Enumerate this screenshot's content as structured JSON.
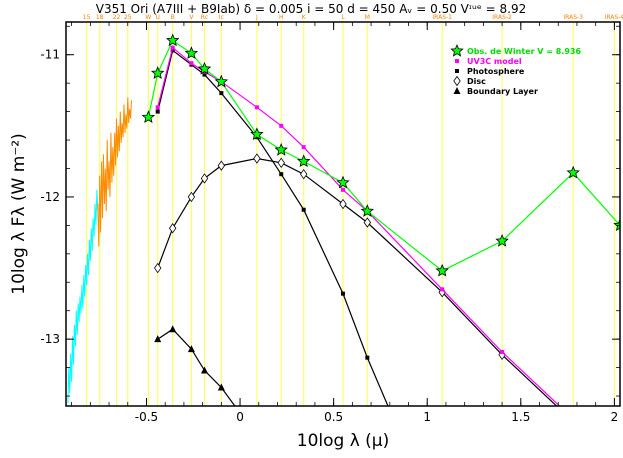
{
  "title": "V351 Ori (A7III + B9Iab) δ = 0.005 i = 50 d = 450 Aᵥ = 0.50 Vᶦᵘᵉ = 8.92",
  "chart_data": {
    "type": "line",
    "xlabel": "10log λ (μ)",
    "ylabel": "10log λ Fλ (W m⁻²)",
    "xlim": [
      -0.93,
      2.03
    ],
    "ylim": [
      -13.47,
      -10.77
    ],
    "x_ticks": [
      -0.5,
      0,
      0.5,
      1,
      1.5,
      2
    ],
    "x_tick_labels": [
      "-0.5",
      "0",
      "0.5",
      "1",
      "1.5",
      "2"
    ],
    "y_ticks": [
      -11,
      -12,
      -13
    ],
    "y_tick_labels": [
      "-11",
      "-12",
      "-13"
    ],
    "bands": [
      {
        "name": "15",
        "x": -0.82
      },
      {
        "name": "18",
        "x": -0.75
      },
      {
        "name": "22",
        "x": -0.66
      },
      {
        "name": "25",
        "x": -0.6
      },
      {
        "name": "W",
        "x": -0.49
      },
      {
        "name": "U",
        "x": -0.44
      },
      {
        "name": "B",
        "x": -0.36
      },
      {
        "name": "V",
        "x": -0.26
      },
      {
        "name": "Rc",
        "x": -0.19
      },
      {
        "name": "Ic",
        "x": -0.1
      },
      {
        "name": "J",
        "x": 0.09
      },
      {
        "name": "H",
        "x": 0.22
      },
      {
        "name": "K",
        "x": 0.34
      },
      {
        "name": "L",
        "x": 0.55
      },
      {
        "name": "M",
        "x": 0.68
      },
      {
        "name": "IRAS-1",
        "x": 1.08
      },
      {
        "name": "IRAS-2",
        "x": 1.4
      },
      {
        "name": "IRAS-3",
        "x": 1.78
      },
      {
        "name": "IRAS-4",
        "x": 2.0
      }
    ],
    "legend_position": "top-right",
    "series": [
      {
        "name": "Obs. de Winter V = 8.936",
        "color": "#00ff00",
        "marker": "star",
        "x": [
          -0.49,
          -0.44,
          -0.36,
          -0.26,
          -0.19,
          -0.1,
          0.09,
          0.22,
          0.34,
          0.55,
          0.68,
          1.08,
          1.4,
          1.78,
          2.03
        ],
        "y": [
          -11.44,
          -11.13,
          -10.9,
          -10.99,
          -11.1,
          -11.19,
          -11.56,
          -11.67,
          -11.75,
          -11.9,
          -12.1,
          -12.52,
          -12.31,
          -11.83,
          -12.2
        ]
      },
      {
        "name": "UV3C model",
        "color": "#ff00ff",
        "marker": "square",
        "x": [
          -0.44,
          -0.36,
          -0.26,
          -0.19,
          -0.1,
          0.09,
          0.22,
          0.34,
          0.55,
          0.68,
          1.08,
          1.4,
          1.78
        ],
        "y": [
          -11.37,
          -10.95,
          -11.06,
          -11.12,
          -11.19,
          -11.37,
          -11.5,
          -11.65,
          -11.95,
          -12.1,
          -12.65,
          -13.09,
          -13.56
        ]
      },
      {
        "name": "Photosphere",
        "color": "#000000",
        "marker": "square",
        "x": [
          -0.44,
          -0.36,
          -0.26,
          -0.19,
          -0.1,
          0.09,
          0.22,
          0.34,
          0.55,
          0.68,
          0.8
        ],
        "y": [
          -11.4,
          -10.97,
          -11.07,
          -11.14,
          -11.27,
          -11.58,
          -11.84,
          -12.09,
          -12.68,
          -13.13,
          -13.5
        ]
      },
      {
        "name": "Disc",
        "color": "#000000",
        "marker": "diamond",
        "x": [
          -0.44,
          -0.36,
          -0.26,
          -0.19,
          -0.1,
          0.09,
          0.22,
          0.34,
          0.55,
          0.68,
          1.08,
          1.4,
          1.78
        ],
        "y": [
          -12.5,
          -12.22,
          -12.0,
          -11.87,
          -11.78,
          -11.73,
          -11.76,
          -11.84,
          -12.05,
          -12.18,
          -12.67,
          -13.11,
          -13.58
        ]
      },
      {
        "name": "Boundary Layer",
        "color": "#000000",
        "marker": "triangle",
        "x": [
          -0.44,
          -0.36,
          -0.26,
          -0.19,
          -0.1,
          0.0
        ],
        "y": [
          -13.0,
          -12.93,
          -13.07,
          -13.22,
          -13.34,
          -13.52
        ]
      }
    ],
    "spectra": [
      {
        "color": "#00ffff",
        "x": [
          -0.92,
          -0.915,
          -0.91,
          -0.905,
          -0.9,
          -0.895,
          -0.89,
          -0.885,
          -0.88,
          -0.875,
          -0.87,
          -0.865,
          -0.86,
          -0.855,
          -0.85,
          -0.845,
          -0.84,
          -0.835,
          -0.83,
          -0.825,
          -0.82,
          -0.815,
          -0.81,
          -0.805,
          -0.8,
          -0.795,
          -0.79,
          -0.785,
          -0.78,
          -0.775,
          -0.77,
          -0.765,
          -0.76
        ],
        "y": [
          -13.45,
          -13.2,
          -13.38,
          -13.1,
          -13.3,
          -12.98,
          -13.18,
          -12.9,
          -13.05,
          -12.8,
          -12.97,
          -12.75,
          -12.88,
          -12.7,
          -12.82,
          -12.62,
          -12.78,
          -12.55,
          -12.7,
          -12.48,
          -12.62,
          -12.4,
          -12.55,
          -12.3,
          -12.45,
          -12.22,
          -12.38,
          -12.15,
          -12.28,
          -12.05,
          -12.2,
          -11.95,
          -12.1
        ]
      },
      {
        "color": "#ff8c00",
        "x": [
          -0.76,
          -0.755,
          -0.75,
          -0.745,
          -0.74,
          -0.735,
          -0.73,
          -0.725,
          -0.72,
          -0.715,
          -0.71,
          -0.705,
          -0.7,
          -0.695,
          -0.69,
          -0.685,
          -0.68,
          -0.675,
          -0.67,
          -0.665,
          -0.66,
          -0.655,
          -0.65,
          -0.645,
          -0.64,
          -0.635,
          -0.63,
          -0.625,
          -0.62,
          -0.615,
          -0.61,
          -0.605,
          -0.6,
          -0.595,
          -0.59,
          -0.585,
          -0.58
        ],
        "y": [
          -12.05,
          -12.35,
          -11.85,
          -12.25,
          -11.75,
          -12.15,
          -11.7,
          -12.05,
          -11.8,
          -12.1,
          -11.6,
          -11.95,
          -11.75,
          -12.0,
          -11.55,
          -11.9,
          -11.65,
          -11.85,
          -11.55,
          -11.78,
          -11.45,
          -11.72,
          -11.5,
          -11.68,
          -11.4,
          -11.62,
          -11.48,
          -11.58,
          -11.35,
          -11.55,
          -11.42,
          -11.52,
          -11.3,
          -11.48,
          -11.38,
          -11.45,
          -11.32
        ]
      }
    ]
  }
}
